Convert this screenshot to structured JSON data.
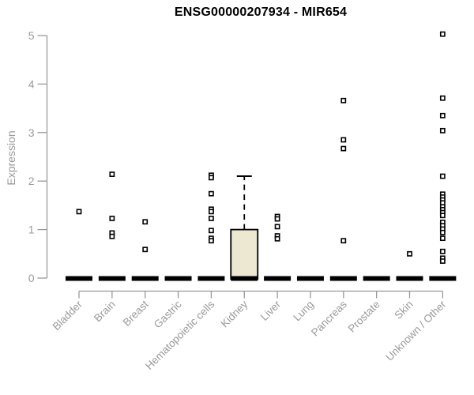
{
  "title": "ENSG00000207934 - MIR654",
  "chart_data": {
    "type": "boxplot",
    "title": "ENSG00000207934 - MIR654",
    "xlabel": "",
    "ylabel": "Expression",
    "ylim": [
      0,
      5
    ],
    "yticks": [
      0,
      1,
      2,
      3,
      4,
      5
    ],
    "grid": false,
    "legend": false,
    "categories": [
      "Bladder",
      "Brain",
      "Breast",
      "Gastric",
      "Hematopoietic cells",
      "Kidney",
      "Liver",
      "Lung",
      "Pancreas",
      "Prostate",
      "Skin",
      "Unknown / Other"
    ],
    "groups": [
      {
        "category": "Bladder",
        "median": 0,
        "points": [
          1.37
        ]
      },
      {
        "category": "Brain",
        "median": 0,
        "points": [
          2.14,
          1.23,
          0.93,
          0.86
        ]
      },
      {
        "category": "Breast",
        "median": 0,
        "points": [
          1.16,
          0.59
        ]
      },
      {
        "category": "Gastric",
        "median": 0,
        "points": []
      },
      {
        "category": "Hematopoietic cells",
        "median": 0,
        "points": [
          2.12,
          2.07,
          1.74,
          1.42,
          1.37,
          1.23,
          0.98,
          0.82,
          0.77
        ]
      },
      {
        "category": "Kidney",
        "median": 0,
        "box": {
          "q1": 0,
          "median": 0,
          "q3": 1.0,
          "whisker_low": 0,
          "whisker_high": 2.1
        },
        "points": []
      },
      {
        "category": "Liver",
        "median": 0,
        "points": [
          1.27,
          1.22,
          1.06,
          0.87,
          0.81
        ]
      },
      {
        "category": "Lung",
        "median": 0,
        "points": []
      },
      {
        "category": "Pancreas",
        "median": 0,
        "points": [
          3.66,
          2.85,
          2.67,
          0.77
        ]
      },
      {
        "category": "Prostate",
        "median": 0,
        "points": []
      },
      {
        "category": "Skin",
        "median": 0,
        "points": [
          0.5
        ]
      },
      {
        "category": "Unknown / Other",
        "median": 0,
        "points": [
          5.03,
          3.71,
          3.35,
          3.04,
          2.1,
          1.73,
          1.67,
          1.61,
          1.55,
          1.47,
          1.41,
          1.35,
          1.29,
          1.15,
          1.08,
          1.01,
          0.94,
          0.82,
          0.55,
          0.41,
          0.35
        ]
      }
    ],
    "colors": {
      "box_fill": "#EDE8D1",
      "box_stroke": "#000000",
      "point_stroke": "#000000",
      "point_fill": "#FFFFFF",
      "zero_dash": "#000000",
      "axis": "#999999",
      "tick_label": "#9a9a9a",
      "title": "#000000"
    }
  }
}
